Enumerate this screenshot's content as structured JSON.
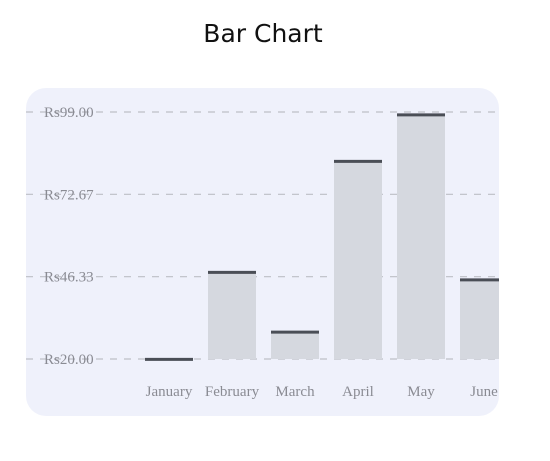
{
  "title": "Bar Chart",
  "chart_data": {
    "type": "bar",
    "title": "Bar Chart",
    "xlabel": "",
    "ylabel": "",
    "categories": [
      "January",
      "February",
      "March",
      "April",
      "May",
      "June"
    ],
    "values": [
      19.9,
      47.7,
      28.6,
      83.2,
      98.1,
      45.3
    ],
    "ylim": [
      20,
      99
    ],
    "yticks": [
      20.0,
      46.33,
      72.67,
      99.0
    ],
    "ytick_labels": [
      "Rs20.00",
      "Rs46.33",
      "Rs72.67",
      "Rs99.00"
    ],
    "grid": true,
    "grid_style": "dashed",
    "legend": false,
    "colors": {
      "panel_bg": "#eff1fb",
      "bar_fill": "#d5d8df",
      "bar_top": "#4a4e56",
      "grid": "#bdbfc6",
      "text": "#8a8b93"
    }
  }
}
